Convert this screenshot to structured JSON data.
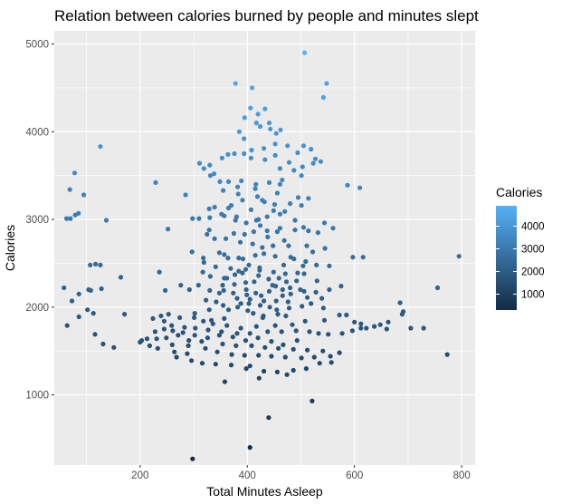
{
  "chart_data": {
    "type": "scatter",
    "title": "Relation between calories burned by people and minutes slept",
    "xlabel": "Total Minutes Asleep",
    "ylabel": "Calories",
    "xlim": [
      40,
      825
    ],
    "ylim": [
      200,
      5150
    ],
    "x_ticks": [
      200,
      400,
      600,
      800
    ],
    "y_ticks": [
      1000,
      2000,
      3000,
      4000,
      5000
    ],
    "x_minor": [
      100,
      300,
      500,
      700
    ],
    "y_minor": [
      1500,
      2500,
      3500,
      4500
    ],
    "grid": true,
    "legend": {
      "title": "Calories",
      "placement": "right",
      "ticks": [
        1000,
        2000,
        3000,
        4000
      ],
      "range": [
        300,
        4900
      ],
      "low_color": "#132b43",
      "high_color": "#56b1f7"
    },
    "background_color": "#ebebeb",
    "points": [
      [
        507,
        4900
      ],
      [
        378,
        4550
      ],
      [
        409,
        4500
      ],
      [
        548,
        4550
      ],
      [
        542,
        4390
      ],
      [
        420,
        4200
      ],
      [
        433,
        4260
      ],
      [
        406,
        4270
      ],
      [
        395,
        4160
      ],
      [
        417,
        4100
      ],
      [
        441,
        4100
      ],
      [
        424,
        4060
      ],
      [
        443,
        4030
      ],
      [
        462,
        4020
      ],
      [
        385,
        4000
      ],
      [
        454,
        3980
      ],
      [
        394,
        3920
      ],
      [
        475,
        3840
      ],
      [
        505,
        3840
      ],
      [
        519,
        3800
      ],
      [
        494,
        3760
      ],
      [
        376,
        3750
      ],
      [
        364,
        3740
      ],
      [
        353,
        3700
      ],
      [
        407,
        3700
      ],
      [
        527,
        3690
      ],
      [
        537,
        3660
      ],
      [
        523,
        3640
      ],
      [
        311,
        3640
      ],
      [
        319,
        3580
      ],
      [
        330,
        3620
      ],
      [
        503,
        3600
      ],
      [
        487,
        3560
      ],
      [
        338,
        3520
      ],
      [
        365,
        3430
      ],
      [
        441,
        3420
      ],
      [
        461,
        3400
      ],
      [
        416,
        3400
      ],
      [
        355,
        3330
      ],
      [
        456,
        3300
      ],
      [
        587,
        3390
      ],
      [
        610,
        3360
      ],
      [
        383,
        3290
      ],
      [
        419,
        3260
      ],
      [
        428,
        3220
      ],
      [
        391,
        3220
      ],
      [
        432,
        3200
      ],
      [
        370,
        3160
      ],
      [
        339,
        3140
      ],
      [
        365,
        3130
      ],
      [
        407,
        3110
      ],
      [
        449,
        3100
      ],
      [
        470,
        3090
      ],
      [
        461,
        3060
      ],
      [
        357,
        3040
      ],
      [
        330,
        3020
      ],
      [
        310,
        3010
      ],
      [
        378,
        2990
      ],
      [
        417,
        2990
      ],
      [
        489,
        2990
      ],
      [
        544,
        2960
      ],
      [
        505,
        2910
      ],
      [
        560,
        2900
      ],
      [
        456,
        2860
      ],
      [
        412,
        2860
      ],
      [
        395,
        2830
      ],
      [
        329,
        2880
      ],
      [
        375,
        2840
      ],
      [
        438,
        2800
      ],
      [
        469,
        2760
      ],
      [
        511,
        2700
      ],
      [
        545,
        2670
      ],
      [
        522,
        2630
      ],
      [
        431,
        2610
      ],
      [
        348,
        2620
      ],
      [
        364,
        2560
      ],
      [
        481,
        2570
      ],
      [
        509,
        2520
      ],
      [
        468,
        2480
      ],
      [
        423,
        2450
      ],
      [
        384,
        2410
      ],
      [
        317,
        2400
      ],
      [
        331,
        2350
      ],
      [
        357,
        2330
      ],
      [
        440,
        2320
      ],
      [
        492,
        2300
      ],
      [
        530,
        2300
      ],
      [
        413,
        2290
      ],
      [
        397,
        2280
      ],
      [
        376,
        2260
      ],
      [
        354,
        2250
      ],
      [
        309,
        2250
      ],
      [
        453,
        2240
      ],
      [
        480,
        2220
      ],
      [
        499,
        2200
      ],
      [
        356,
        2190
      ],
      [
        374,
        2160
      ],
      [
        399,
        2140
      ],
      [
        426,
        2130
      ],
      [
        466,
        2130
      ],
      [
        512,
        2110
      ],
      [
        539,
        2100
      ],
      [
        323,
        2080
      ],
      [
        342,
        2060
      ],
      [
        388,
        2040
      ],
      [
        424,
        2020
      ],
      [
        442,
        2000
      ],
      [
        478,
        1990
      ],
      [
        365,
        1970
      ],
      [
        401,
        1960
      ],
      [
        411,
        1930
      ],
      [
        457,
        1920
      ],
      [
        472,
        1900
      ],
      [
        429,
        1880
      ],
      [
        357,
        1870
      ],
      [
        333,
        1850
      ],
      [
        318,
        1840
      ],
      [
        301,
        1880
      ],
      [
        274,
        1880
      ],
      [
        253,
        1920
      ],
      [
        239,
        1900
      ],
      [
        224,
        1870
      ],
      [
        245,
        1840
      ],
      [
        259,
        1790
      ],
      [
        283,
        1770
      ],
      [
        303,
        1760
      ],
      [
        327,
        1740
      ],
      [
        352,
        1720
      ],
      [
        381,
        1700
      ],
      [
        405,
        1700
      ],
      [
        438,
        1720
      ],
      [
        464,
        1720
      ],
      [
        491,
        1730
      ],
      [
        516,
        1720
      ],
      [
        533,
        1700
      ],
      [
        551,
        1690
      ],
      [
        577,
        1700
      ],
      [
        596,
        1730
      ],
      [
        622,
        1760
      ],
      [
        648,
        1800
      ],
      [
        663,
        1830
      ],
      [
        689,
        1920
      ],
      [
        705,
        1760
      ],
      [
        729,
        1760
      ],
      [
        271,
        1680
      ],
      [
        249,
        1650
      ],
      [
        231,
        1640
      ],
      [
        213,
        1640
      ],
      [
        203,
        1620
      ],
      [
        218,
        1560
      ],
      [
        260,
        1570
      ],
      [
        290,
        1560
      ],
      [
        322,
        1530
      ],
      [
        344,
        1490
      ],
      [
        371,
        1460
      ],
      [
        395,
        1450
      ],
      [
        421,
        1450
      ],
      [
        445,
        1440
      ],
      [
        471,
        1430
      ],
      [
        501,
        1420
      ],
      [
        525,
        1430
      ],
      [
        555,
        1440
      ],
      [
        572,
        1480
      ],
      [
        541,
        1500
      ],
      [
        512,
        1510
      ],
      [
        486,
        1520
      ],
      [
        458,
        1530
      ],
      [
        433,
        1540
      ],
      [
        408,
        1560
      ],
      [
        379,
        1560
      ],
      [
        354,
        1580
      ],
      [
        315,
        1610
      ],
      [
        291,
        1620
      ],
      [
        268,
        1430
      ],
      [
        296,
        1390
      ],
      [
        316,
        1360
      ],
      [
        341,
        1350
      ],
      [
        370,
        1340
      ],
      [
        398,
        1300
      ],
      [
        431,
        1270
      ],
      [
        456,
        1260
      ],
      [
        486,
        1280
      ],
      [
        510,
        1300
      ],
      [
        535,
        1360
      ],
      [
        557,
        1370
      ],
      [
        405,
        1330
      ],
      [
        358,
        1150
      ],
      [
        422,
        1190
      ],
      [
        474,
        1230
      ],
      [
        521,
        930
      ],
      [
        440,
        740
      ],
      [
        405,
        400
      ],
      [
        298,
        270
      ],
      [
        58,
        2220
      ],
      [
        86,
        2150
      ],
      [
        104,
        2200
      ],
      [
        108,
        2190
      ],
      [
        128,
        2210
      ],
      [
        164,
        2340
      ],
      [
        113,
        1930
      ],
      [
        102,
        1970
      ],
      [
        73,
        2070
      ],
      [
        171,
        1920
      ],
      [
        86,
        1890
      ],
      [
        64,
        1790
      ],
      [
        116,
        1690
      ],
      [
        131,
        1580
      ],
      [
        151,
        1540
      ],
      [
        95,
        3280
      ],
      [
        69,
        3340
      ],
      [
        78,
        3530
      ],
      [
        126,
        3830
      ],
      [
        63,
        3010
      ],
      [
        85,
        3070
      ],
      [
        70,
        3010
      ],
      [
        79,
        3050
      ],
      [
        117,
        2490
      ],
      [
        107,
        2480
      ],
      [
        126,
        2480
      ],
      [
        137,
        2990
      ],
      [
        252,
        2890
      ],
      [
        298,
        3010
      ],
      [
        285,
        3280
      ],
      [
        229,
        3420
      ],
      [
        297,
        2630
      ],
      [
        318,
        2560
      ],
      [
        357,
        2600
      ],
      [
        384,
        2560
      ],
      [
        415,
        2590
      ],
      [
        452,
        2580
      ],
      [
        487,
        2550
      ],
      [
        504,
        2470
      ],
      [
        529,
        2480
      ],
      [
        553,
        2470
      ],
      [
        597,
        2570
      ],
      [
        616,
        2570
      ],
      [
        795,
        2580
      ],
      [
        755,
        2220
      ],
      [
        685,
        2050
      ],
      [
        691,
        1950
      ],
      [
        637,
        1780
      ],
      [
        612,
        1810
      ],
      [
        600,
        1830
      ],
      [
        572,
        1910
      ],
      [
        542,
        1990
      ],
      [
        519,
        2040
      ],
      [
        502,
        2010
      ],
      [
        476,
        2060
      ],
      [
        454,
        2070
      ],
      [
        431,
        2070
      ],
      [
        405,
        2090
      ],
      [
        381,
        2100
      ],
      [
        348,
        2160
      ],
      [
        330,
        2190
      ],
      [
        292,
        2200
      ],
      [
        276,
        2250
      ],
      [
        247,
        2190
      ],
      [
        236,
        2400
      ],
      [
        228,
        1720
      ],
      [
        200,
        1600
      ],
      [
        233,
        1530
      ],
      [
        264,
        1490
      ],
      [
        288,
        1470
      ],
      [
        336,
        1810
      ],
      [
        362,
        1790
      ],
      [
        388,
        1760
      ],
      [
        417,
        1780
      ],
      [
        452,
        1790
      ],
      [
        484,
        1800
      ],
      [
        508,
        1840
      ],
      [
        544,
        1850
      ],
      [
        585,
        1910
      ],
      [
        612,
        1760
      ],
      [
        660,
        1750
      ],
      [
        773,
        1460
      ],
      [
        493,
        1620
      ],
      [
        467,
        1570
      ],
      [
        445,
        1610
      ],
      [
        420,
        1650
      ],
      [
        397,
        1620
      ],
      [
        373,
        1660
      ],
      [
        348,
        1680
      ],
      [
        326,
        1650
      ],
      [
        302,
        1680
      ],
      [
        280,
        1710
      ],
      [
        261,
        1730
      ],
      [
        245,
        1750
      ],
      [
        302,
        1930
      ],
      [
        329,
        1970
      ],
      [
        355,
        2020
      ],
      [
        382,
        2000
      ],
      [
        403,
        2040
      ],
      [
        430,
        1900
      ],
      [
        455,
        1970
      ],
      [
        481,
        2150
      ],
      [
        506,
        2180
      ],
      [
        528,
        2170
      ],
      [
        553,
        2200
      ],
      [
        575,
        2240
      ],
      [
        494,
        2390
      ],
      [
        471,
        2380
      ],
      [
        449,
        2400
      ],
      [
        423,
        2420
      ],
      [
        397,
        2430
      ],
      [
        369,
        2440
      ],
      [
        341,
        2460
      ],
      [
        319,
        2510
      ],
      [
        392,
        2550
      ],
      [
        428,
        2680
      ],
      [
        448,
        2700
      ],
      [
        477,
        2700
      ],
      [
        410,
        2720
      ],
      [
        387,
        2740
      ],
      [
        360,
        2780
      ],
      [
        339,
        2780
      ],
      [
        325,
        2830
      ],
      [
        437,
        2870
      ],
      [
        461,
        2900
      ],
      [
        489,
        2880
      ],
      [
        514,
        2870
      ],
      [
        532,
        2850
      ],
      [
        424,
        2930
      ],
      [
        398,
        2960
      ],
      [
        380,
        3030
      ],
      [
        352,
        3060
      ],
      [
        329,
        3120
      ],
      [
        451,
        3170
      ],
      [
        480,
        3180
      ],
      [
        501,
        3160
      ],
      [
        421,
        3000
      ],
      [
        437,
        3030
      ],
      [
        415,
        3350
      ],
      [
        382,
        3370
      ],
      [
        349,
        3430
      ],
      [
        331,
        3500
      ],
      [
        465,
        3450
      ],
      [
        495,
        3250
      ],
      [
        514,
        3240
      ],
      [
        461,
        3580
      ],
      [
        478,
        3650
      ],
      [
        433,
        3680
      ],
      [
        452,
        3730
      ],
      [
        394,
        3750
      ],
      [
        408,
        3790
      ],
      [
        431,
        3810
      ],
      [
        452,
        3860
      ],
      [
        501,
        3500
      ],
      [
        389,
        3440
      ],
      [
        403,
        2480
      ],
      [
        377,
        2370
      ],
      [
        362,
        2330
      ],
      [
        416,
        2160
      ],
      [
        441,
        2180
      ],
      [
        466,
        2200
      ],
      [
        447,
        2250
      ],
      [
        398,
        2200
      ],
      [
        473,
        2290
      ],
      [
        459,
        2330
      ],
      [
        421,
        2360
      ],
      [
        391,
        2390
      ],
      [
        506,
        2380
      ]
    ]
  }
}
